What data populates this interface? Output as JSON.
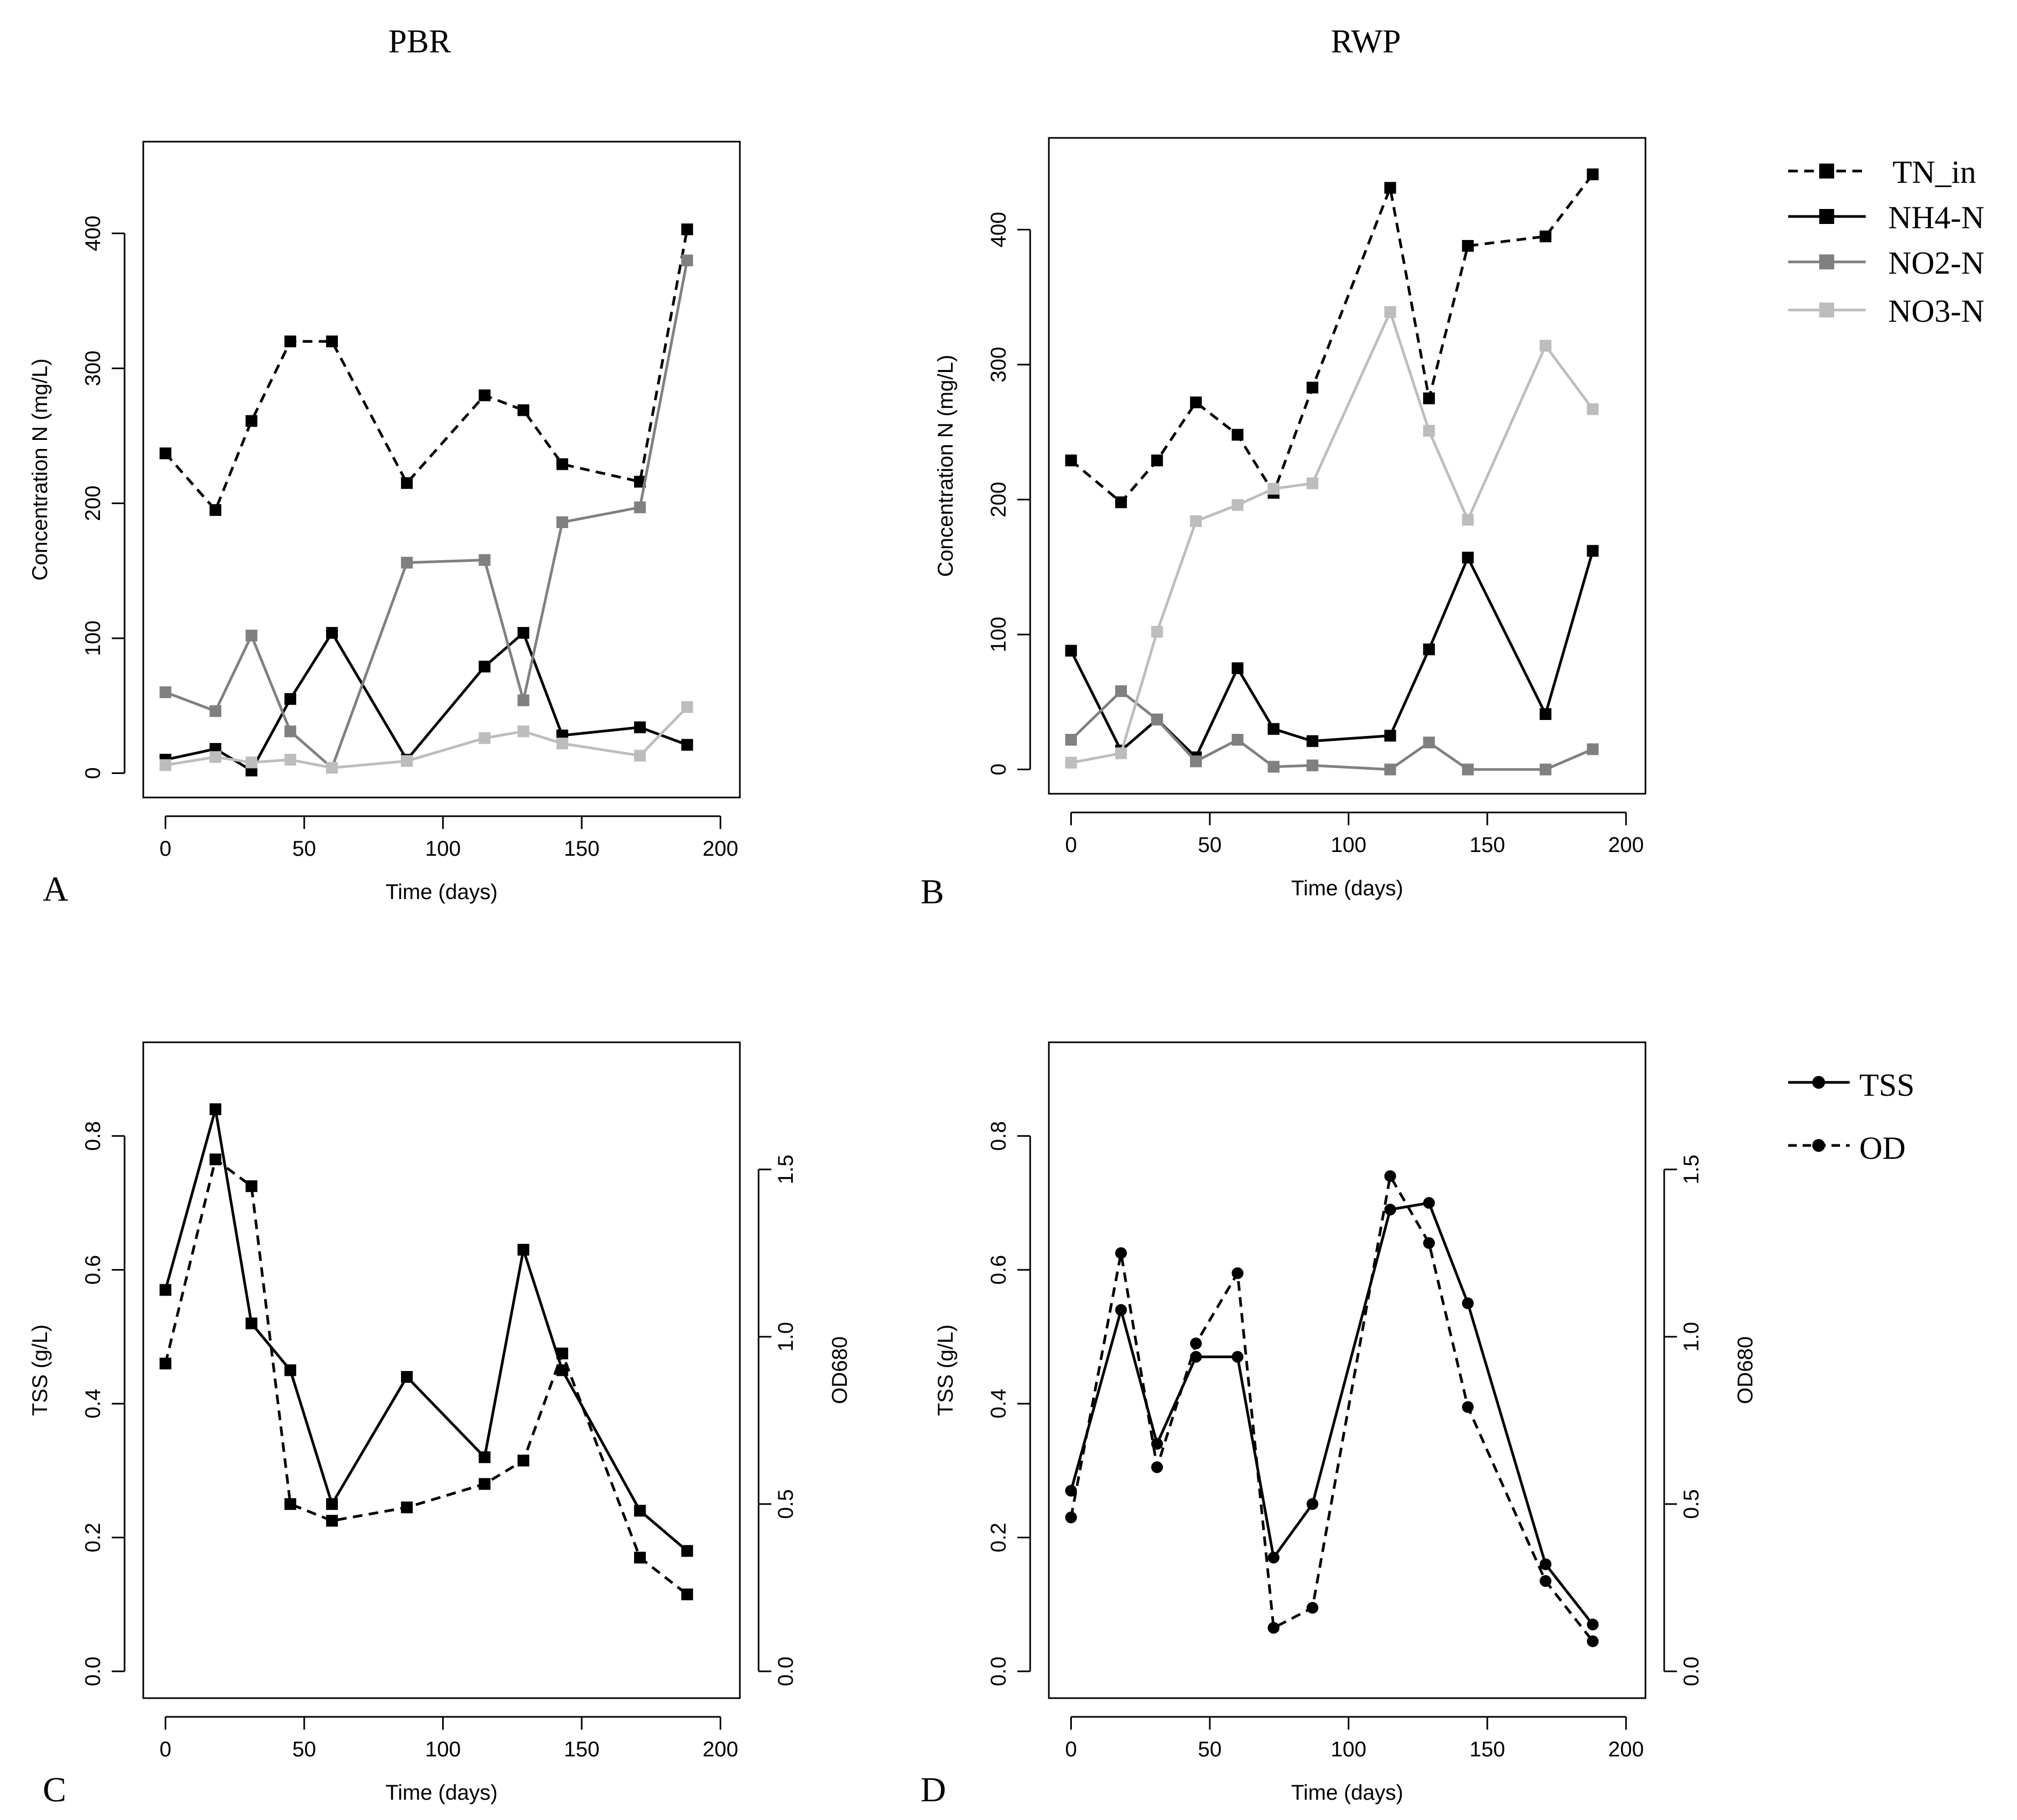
{
  "figure": {
    "panel_titles": [
      "PBR",
      "RWP"
    ],
    "panel_letters": [
      "A",
      "B",
      "C",
      "D"
    ],
    "legend_nitrogen": [
      {
        "label": "TN_in",
        "color": "#000000",
        "dash": true
      },
      {
        "label": "NH4-N",
        "color": "#000000",
        "dash": false
      },
      {
        "label": "NO2-N",
        "color": "#808080",
        "dash": false
      },
      {
        "label": "NO3-N",
        "color": "#bdbdbd",
        "dash": false
      }
    ],
    "legend_biomass": [
      {
        "label": "TSS",
        "color": "#000000",
        "dash": false
      },
      {
        "label": "OD",
        "color": "#000000",
        "dash": true
      }
    ]
  },
  "chart_data": [
    {
      "id": "A",
      "type": "line",
      "title": "PBR",
      "xlabel": "Time (days)",
      "ylabel": "Concentration N (mg/L)",
      "xlim": [
        -8,
        207
      ],
      "ylim": [
        -18,
        468
      ],
      "xticks": [
        0,
        50,
        100,
        150,
        200
      ],
      "yticks": [
        0,
        100,
        200,
        300,
        400
      ],
      "x": [
        0,
        18,
        31,
        45,
        60,
        87,
        115,
        129,
        143,
        171,
        188
      ],
      "series": [
        {
          "name": "TN_in",
          "color": "#000000",
          "dash": true,
          "marker": "square",
          "values": [
            237,
            195,
            261,
            320,
            320,
            215,
            280,
            269,
            229,
            216,
            403
          ]
        },
        {
          "name": "NH4-N",
          "color": "#000000",
          "dash": false,
          "marker": "square",
          "values": [
            10,
            18,
            2,
            55,
            104,
            10,
            79,
            104,
            28,
            34,
            21
          ]
        },
        {
          "name": "NO2-N",
          "color": "#808080",
          "dash": false,
          "marker": "square",
          "values": [
            60,
            46,
            102,
            31,
            4,
            156,
            158,
            54,
            186,
            197,
            380
          ]
        },
        {
          "name": "NO3-N",
          "color": "#bdbdbd",
          "dash": false,
          "marker": "square",
          "values": [
            6,
            12,
            8,
            10,
            4,
            9,
            26,
            31,
            22,
            13,
            49
          ]
        }
      ]
    },
    {
      "id": "B",
      "type": "line",
      "title": "RWP",
      "xlabel": "Time (days)",
      "ylabel": "Concentration N (mg/L)",
      "xlim": [
        -8,
        207
      ],
      "ylim": [
        -18,
        468
      ],
      "xticks": [
        0,
        50,
        100,
        150,
        200
      ],
      "yticks": [
        0,
        100,
        200,
        300,
        400
      ],
      "x": [
        0,
        18,
        31,
        45,
        60,
        73,
        87,
        115,
        129,
        143,
        171,
        188
      ],
      "series": [
        {
          "name": "TN_in",
          "color": "#000000",
          "dash": true,
          "marker": "square",
          "values": [
            229,
            198,
            229,
            272,
            248,
            205,
            283,
            431,
            275,
            388,
            395,
            441
          ]
        },
        {
          "name": "NH4-N",
          "color": "#000000",
          "dash": false,
          "marker": "square",
          "values": [
            88,
            14,
            37,
            9,
            75,
            30,
            21,
            25,
            89,
            157,
            41,
            162
          ]
        },
        {
          "name": "NO2-N",
          "color": "#808080",
          "dash": false,
          "marker": "square",
          "values": [
            22,
            58,
            37,
            6,
            22,
            2,
            3,
            0,
            20,
            0,
            0,
            15
          ]
        },
        {
          "name": "NO3-N",
          "color": "#bdbdbd",
          "dash": false,
          "marker": "square",
          "values": [
            5,
            12,
            102,
            184,
            196,
            208,
            212,
            339,
            251,
            185,
            314,
            267
          ]
        }
      ]
    },
    {
      "id": "C",
      "type": "line",
      "xlabel": "Time (days)",
      "ylabel": "TSS (g/L)",
      "y2label": "OD680",
      "xlim": [
        -8,
        207
      ],
      "ylim": [
        -0.04,
        0.94
      ],
      "y2lim": [
        -0.08,
        1.88
      ],
      "xticks": [
        0,
        50,
        100,
        150,
        200
      ],
      "yticks": [
        0.0,
        0.2,
        0.4,
        0.6,
        0.8
      ],
      "y2ticks": [
        0.0,
        0.5,
        1.0,
        1.5
      ],
      "series": [
        {
          "name": "TSS",
          "axis": "left",
          "color": "#000000",
          "dash": false,
          "marker": "square",
          "x": [
            0,
            18,
            31,
            45,
            60,
            87,
            115,
            129,
            143,
            171,
            188
          ],
          "values": [
            0.57,
            0.84,
            0.52,
            0.45,
            0.25,
            0.44,
            0.32,
            0.63,
            0.45,
            0.24,
            0.18
          ]
        },
        {
          "name": "OD",
          "axis": "right",
          "color": "#000000",
          "dash": true,
          "marker": "square",
          "x": [
            0,
            18,
            31,
            45,
            60,
            87,
            115,
            129,
            143,
            171,
            188
          ],
          "values": [
            0.92,
            1.53,
            1.45,
            0.5,
            0.45,
            0.49,
            0.56,
            0.63,
            0.95,
            0.34,
            0.23
          ]
        }
      ]
    },
    {
      "id": "D",
      "type": "line",
      "xlabel": "Time (days)",
      "ylabel": "TSS (g/L)",
      "y2label": "OD680",
      "xlim": [
        -8,
        207
      ],
      "ylim": [
        -0.04,
        0.94
      ],
      "y2lim": [
        -0.08,
        1.88
      ],
      "xticks": [
        0,
        50,
        100,
        150,
        200
      ],
      "yticks": [
        0.0,
        0.2,
        0.4,
        0.6,
        0.8
      ],
      "y2ticks": [
        0.0,
        0.5,
        1.0,
        1.5
      ],
      "series": [
        {
          "name": "TSS",
          "axis": "left",
          "color": "#000000",
          "dash": false,
          "marker": "circle",
          "x": [
            0,
            18,
            31,
            45,
            60,
            73,
            87,
            115,
            129,
            143,
            171,
            188
          ],
          "values": [
            0.27,
            0.54,
            0.34,
            0.47,
            0.47,
            0.17,
            0.25,
            0.69,
            0.7,
            0.55,
            0.16,
            0.07
          ]
        },
        {
          "name": "OD",
          "axis": "right",
          "color": "#000000",
          "dash": true,
          "marker": "circle",
          "x": [
            0,
            18,
            31,
            45,
            60,
            73,
            87,
            115,
            129,
            143,
            171,
            188
          ],
          "values": [
            0.46,
            1.25,
            0.61,
            0.98,
            1.19,
            0.13,
            0.19,
            1.48,
            1.28,
            0.79,
            0.27,
            0.09
          ]
        }
      ]
    }
  ]
}
